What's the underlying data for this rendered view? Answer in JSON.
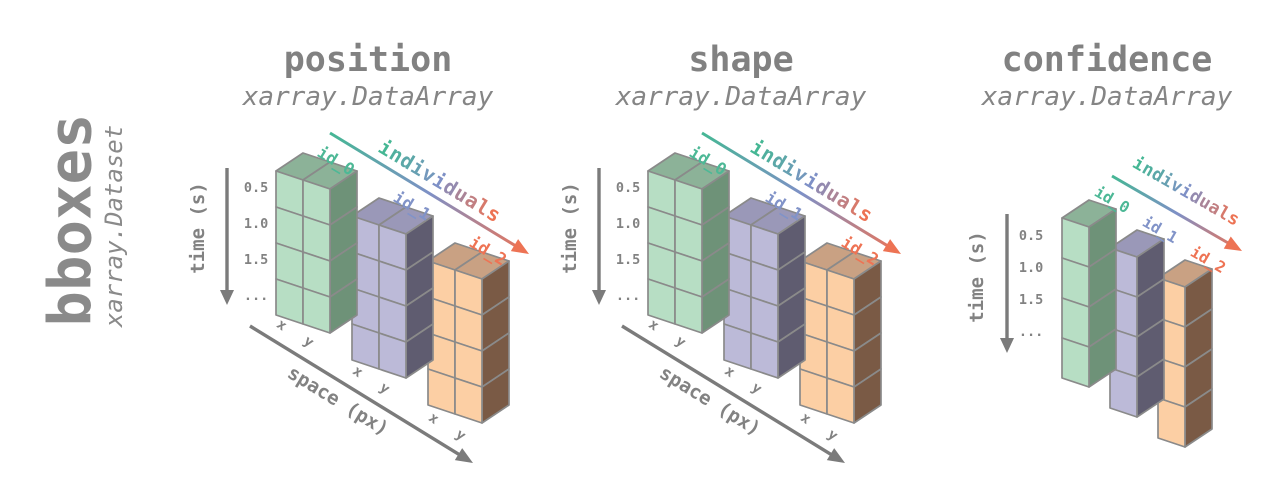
{
  "dataset": {
    "name": "bboxes",
    "type": "xarray.Dataset"
  },
  "panels": [
    {
      "id": "position",
      "title": "position",
      "subtitle": "xarray.DataArray",
      "dims": [
        "time",
        "individuals",
        "space"
      ],
      "rows": 4,
      "cols": 2
    },
    {
      "id": "shape",
      "title": "shape",
      "subtitle": "xarray.DataArray",
      "dims": [
        "time",
        "individuals",
        "space"
      ],
      "rows": 4,
      "cols": 2
    },
    {
      "id": "confidence",
      "title": "confidence",
      "subtitle": "xarray.DataArray",
      "dims": [
        "time",
        "individuals"
      ],
      "rows": 4,
      "cols": 1
    }
  ],
  "axes": {
    "time": {
      "label": "time (s)",
      "ticks": [
        "0.5",
        "1.0",
        "1.5",
        "..."
      ]
    },
    "space": {
      "label": "space (px)",
      "ticks": [
        "x",
        "y"
      ]
    },
    "individuals": {
      "label": "individuals",
      "ids": [
        "id_0",
        "id_1",
        "id_2"
      ]
    }
  },
  "colors": {
    "text": "#828282",
    "axis": "#7b7b7b",
    "box_edge": "#8a8a8a",
    "individuals_gradient": [
      "#45b794",
      "#7e90c6",
      "#ed7354"
    ],
    "id_labels": [
      "#4db896",
      "#8193c8",
      "#ee7354"
    ],
    "boxes": [
      {
        "front": "#b7dec4",
        "top": "#8cb298",
        "side": "#6e9278"
      },
      {
        "front": "#bcbad8",
        "top": "#9a98b8",
        "side": "#5f5c70"
      },
      {
        "front": "#fccfa4",
        "top": "#c9a183",
        "side": "#7a5a45"
      }
    ]
  }
}
